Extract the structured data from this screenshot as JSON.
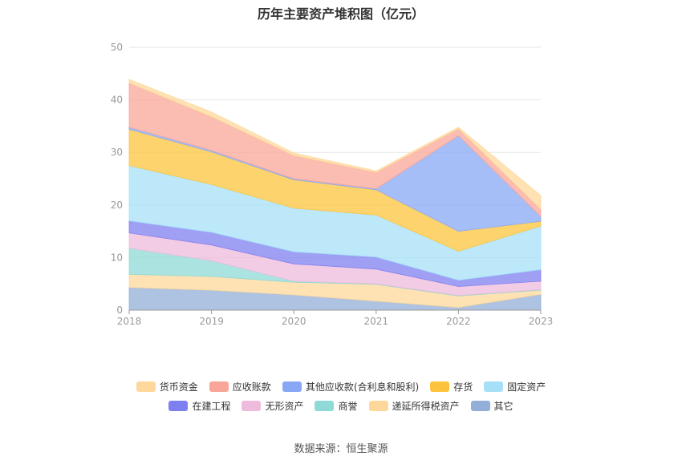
{
  "source_label": "数据来源：恒生聚源",
  "chart_data": {
    "type": "area",
    "stacked": true,
    "title": "历年主要资产堆积图（亿元）",
    "xlabel": "",
    "ylabel": "",
    "categories": [
      "2018",
      "2019",
      "2020",
      "2021",
      "2022",
      "2023"
    ],
    "ylim": [
      0,
      50
    ],
    "yticks": [
      0,
      10,
      20,
      30,
      40,
      50
    ],
    "grid": true,
    "legend_position": "bottom",
    "series": [
      {
        "name": "其它",
        "color": "#93aed8",
        "values": [
          4.3,
          3.8,
          2.9,
          1.7,
          0.5,
          3.0
        ]
      },
      {
        "name": "递延所得税资产",
        "color": "#fdd89a",
        "values": [
          2.5,
          2.6,
          2.4,
          3.2,
          2.2,
          0.8
        ]
      },
      {
        "name": "商誉",
        "color": "#8fd9d6",
        "values": [
          5.0,
          3.0,
          0.2,
          0.1,
          0.1,
          0.1
        ]
      },
      {
        "name": "无形资产",
        "color": "#eebbdc",
        "values": [
          2.9,
          3.0,
          3.3,
          2.8,
          1.7,
          1.6
        ]
      },
      {
        "name": "在建工程",
        "color": "#7f80f0",
        "values": [
          2.3,
          2.4,
          2.3,
          2.3,
          1.2,
          2.2
        ]
      },
      {
        "name": "固定资产",
        "color": "#a6e0f8",
        "values": [
          10.5,
          9.1,
          8.3,
          8.0,
          5.5,
          8.3
        ]
      },
      {
        "name": "存货",
        "color": "#fcc43d",
        "values": [
          6.9,
          6.2,
          5.4,
          4.8,
          3.8,
          0.9
        ]
      },
      {
        "name": "其他应收款(合利息和股利)",
        "color": "#88a8f6",
        "values": [
          0.4,
          0.3,
          0.2,
          0.2,
          18.2,
          0.9
        ]
      },
      {
        "name": "应收账款",
        "color": "#f9a598",
        "values": [
          8.4,
          6.4,
          4.4,
          3.1,
          1.3,
          1.4
        ]
      },
      {
        "name": "货币资金",
        "color": "#fdd89a",
        "values": [
          0.7,
          0.9,
          0.5,
          0.3,
          0.3,
          2.6
        ]
      }
    ],
    "legend_rows": [
      [
        "货币资金",
        "应收账款",
        "其他应收款(合利息和股利)",
        "存货",
        "固定资产"
      ],
      [
        "在建工程",
        "无形资产",
        "商誉",
        "递延所得税资产",
        "其它"
      ]
    ]
  }
}
